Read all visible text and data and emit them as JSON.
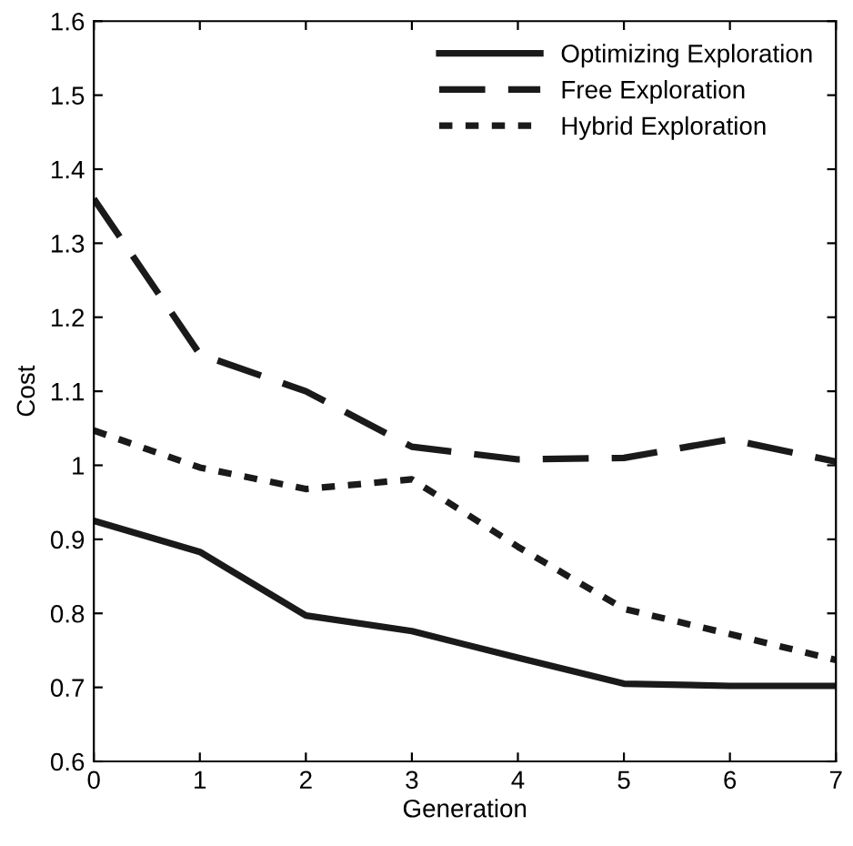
{
  "chart_data": {
    "type": "line",
    "xlabel": "Generation",
    "ylabel": "Cost",
    "x": [
      0,
      1,
      2,
      3,
      4,
      5,
      6,
      7
    ],
    "xlim": [
      0,
      7
    ],
    "xticks": [
      0,
      1,
      2,
      3,
      4,
      5,
      6,
      7
    ],
    "ylim": [
      0.6,
      1.6
    ],
    "yticks": [
      0.6,
      0.7,
      0.8,
      0.9,
      1,
      1.1,
      1.2,
      1.3,
      1.4,
      1.5,
      1.6
    ],
    "grid": false,
    "legend": "top right",
    "marker": "none",
    "series": [
      {
        "name": "Optimizing Exploration",
        "color": "#1a1a1a",
        "line_style": "solid",
        "values": [
          0.925,
          0.883,
          0.797,
          0.776,
          0.74,
          0.705,
          0.702,
          0.702
        ]
      },
      {
        "name": "Free Exploration",
        "color": "#1a1a1a",
        "line_style": "dashed",
        "values": [
          1.36,
          1.15,
          1.1,
          1.025,
          1.008,
          1.01,
          1.035,
          1.005
        ]
      },
      {
        "name": "Hybrid Exploration",
        "color": "#1a1a1a",
        "line_style": "dotted",
        "values": [
          1.047,
          0.997,
          0.968,
          0.981,
          0.89,
          0.806,
          0.772,
          0.737
        ]
      }
    ]
  }
}
